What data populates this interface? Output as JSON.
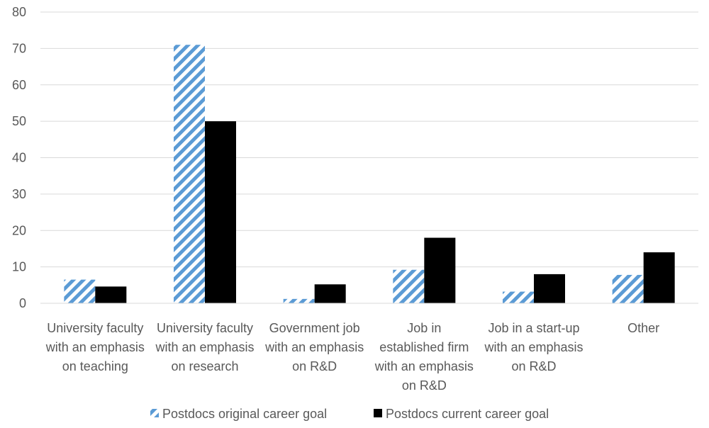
{
  "chart_data": {
    "type": "bar",
    "categories": [
      [
        "University faculty",
        "with an emphasis",
        "on teaching"
      ],
      [
        "University faculty",
        "with an emphasis",
        "on research"
      ],
      [
        "Government job",
        "with an emphasis",
        "on R&D"
      ],
      [
        "Job in",
        "established firm",
        "with an emphasis",
        "on R&D"
      ],
      [
        "Job in a start-up",
        "with an emphasis",
        "on R&D"
      ],
      [
        "Other"
      ]
    ],
    "series": [
      {
        "name": "Postdocs original career goal",
        "values": [
          6.5,
          71,
          1.2,
          9.2,
          3.2,
          7.8
        ],
        "color": "#5b9bd5",
        "pattern": "diagonal-stripes"
      },
      {
        "name": "Postdocs current career goal",
        "values": [
          4.6,
          50,
          5.2,
          18,
          8,
          14
        ],
        "color": "#000000",
        "pattern": "solid"
      }
    ],
    "ylim": [
      0,
      80
    ],
    "yticks": [
      0,
      10,
      20,
      30,
      40,
      50,
      60,
      70,
      80
    ],
    "grid": true,
    "legend": "bottom",
    "title": "",
    "xlabel": "",
    "ylabel": ""
  }
}
